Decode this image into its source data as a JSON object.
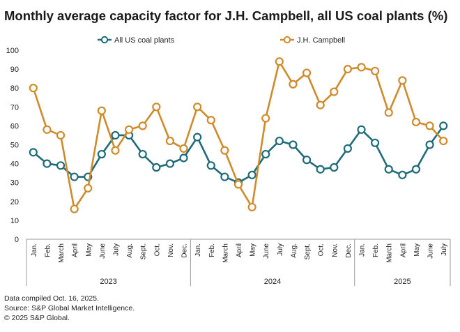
{
  "title": "Monthly average capacity factor for J.H. Campbell, all US coal plants (%)",
  "footer": {
    "compiled": "Data compiled Oct. 16, 2025.",
    "source": "Source: S&P Global Market Intelligence.",
    "copyright": "© 2025 S&P Global."
  },
  "chart_data": {
    "type": "line",
    "title": "Monthly average capacity factor for J.H. Campbell, all US coal plants (%)",
    "xlabel": "",
    "ylabel": "",
    "ylim": [
      0,
      100
    ],
    "yticks": [
      0,
      10,
      20,
      30,
      40,
      50,
      60,
      70,
      80,
      90,
      100
    ],
    "grid": false,
    "legend_position": "top-center",
    "categories": [
      "Jan.",
      "Feb.",
      "March",
      "April",
      "May",
      "June",
      "July",
      "Aug.",
      "Sept.",
      "Oct.",
      "Nov.",
      "Dec.",
      "Jan.",
      "Feb.",
      "March",
      "April",
      "May",
      "June",
      "July",
      "Aug.",
      "Sept.",
      "Oct.",
      "Nov.",
      "Dec.",
      "Jan.",
      "Feb.",
      "March",
      "April",
      "May",
      "June",
      "July"
    ],
    "year_groups": [
      {
        "label": "2023",
        "count": 12
      },
      {
        "label": "2024",
        "count": 12
      },
      {
        "label": "2025",
        "count": 7
      }
    ],
    "series": [
      {
        "name": "All US coal plants",
        "color": "#1e6b78",
        "values": [
          46,
          40,
          39,
          33,
          33,
          45,
          55,
          55,
          45,
          38,
          40,
          43,
          54,
          39,
          33,
          30,
          34,
          45,
          52,
          50,
          42,
          37,
          38,
          48,
          58,
          51,
          37,
          34,
          37,
          50,
          60
        ]
      },
      {
        "name": "J.H. Campbell",
        "color": "#d08a2a",
        "values": [
          80,
          58,
          55,
          16,
          27,
          68,
          47,
          58,
          60,
          70,
          52,
          48,
          70,
          63,
          47,
          29,
          17,
          64,
          94,
          82,
          88,
          71,
          78,
          90,
          91,
          89,
          67,
          84,
          62,
          60,
          52
        ]
      }
    ]
  }
}
